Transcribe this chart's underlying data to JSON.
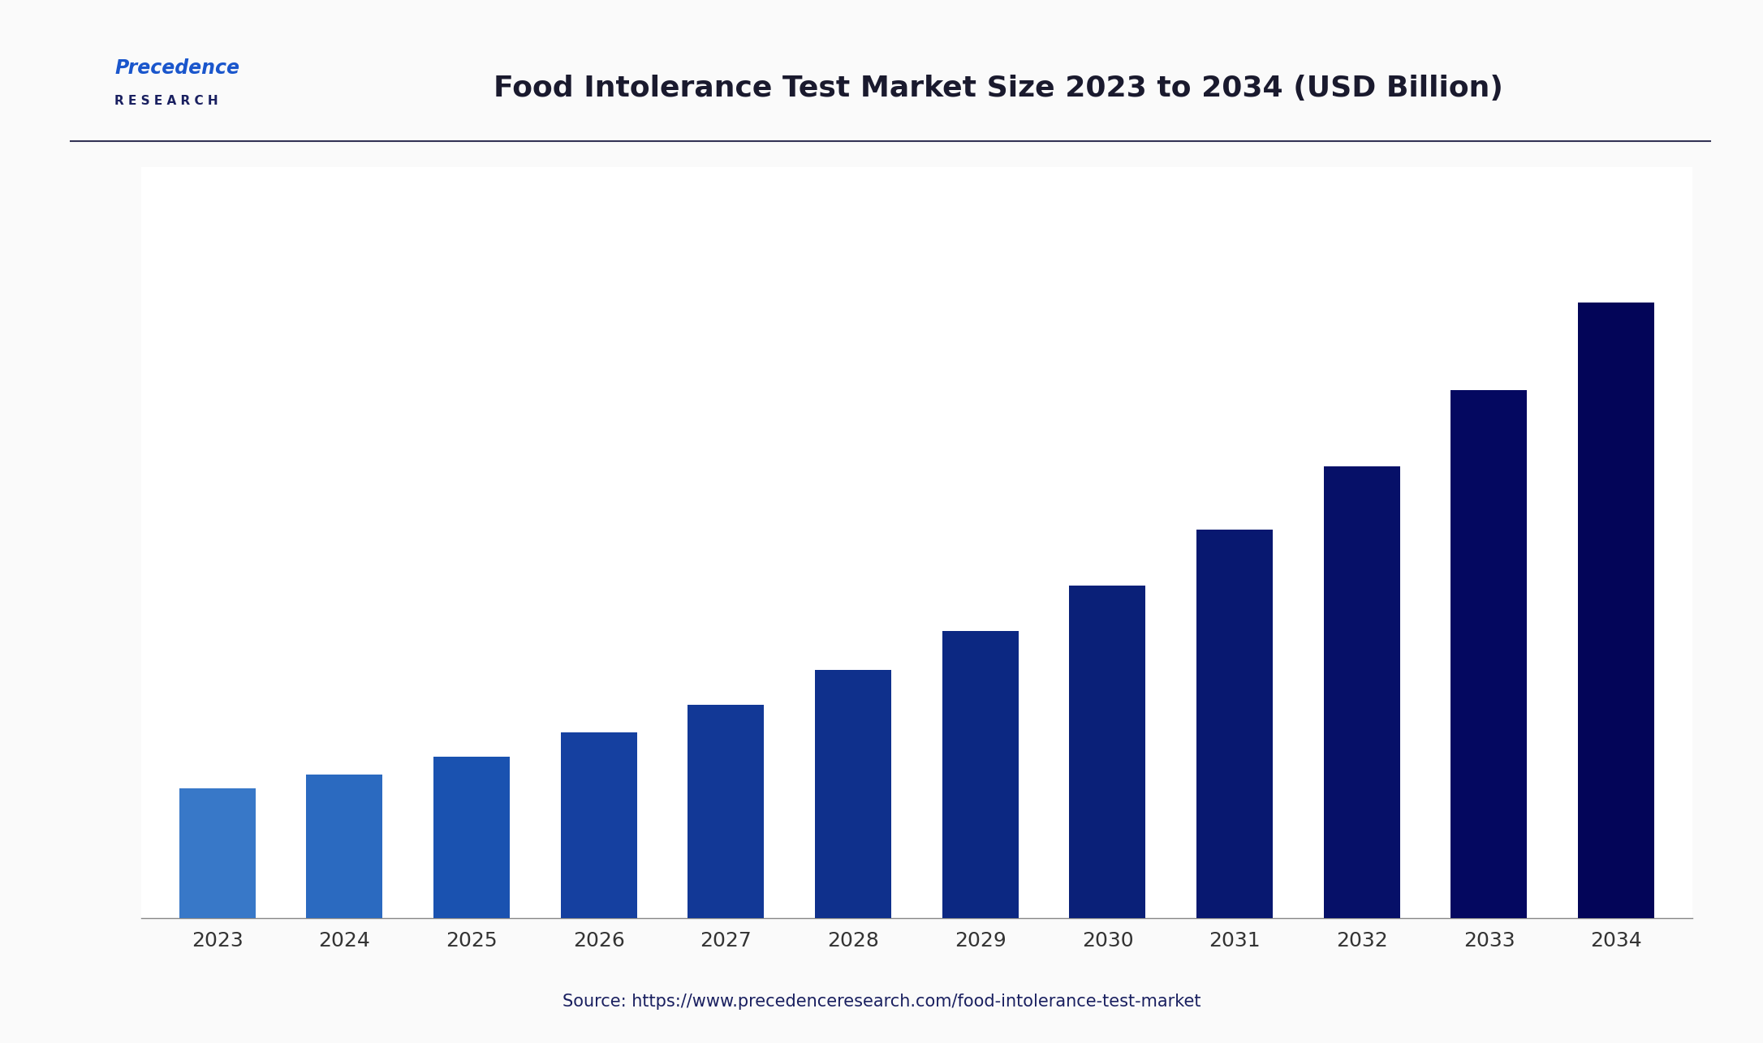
{
  "title": "Food Intolerance Test Market Size 2023 to 2034 (USD Billion)",
  "categories": [
    "2023",
    "2024",
    "2025",
    "2026",
    "2027",
    "2028",
    "2029",
    "2030",
    "2031",
    "2032",
    "2033",
    "2034"
  ],
  "values": [
    1.85,
    2.05,
    2.3,
    2.65,
    3.05,
    3.55,
    4.1,
    4.75,
    5.55,
    6.45,
    7.55,
    8.8
  ],
  "bar_colors": [
    "#3878C8",
    "#2B6AC0",
    "#1A52B0",
    "#1540A0",
    "#123896",
    "#0F308C",
    "#0C2882",
    "#0A2078",
    "#081870",
    "#061068",
    "#040860",
    "#030558"
  ],
  "background_color": "#FAFAFA",
  "plot_bg_color": "#FFFFFF",
  "title_color": "#1a1a2e",
  "title_fontsize": 26,
  "tick_fontsize": 18,
  "source_text": "Source: https://www.precedenceresearch.com/food-intolerance-test-market",
  "source_color": "#1a2060",
  "source_fontsize": 15,
  "bar_width": 0.6,
  "separator_color": "#333355",
  "logo_text_precedence": "Precedence",
  "logo_text_research": "R E S E A R C H"
}
